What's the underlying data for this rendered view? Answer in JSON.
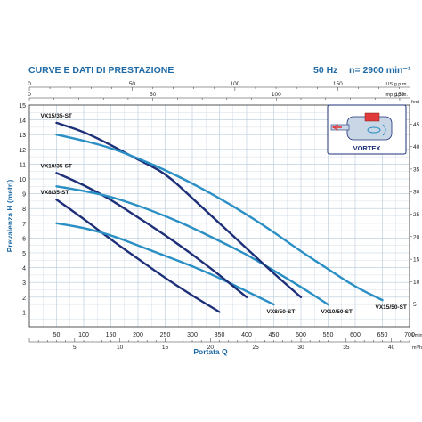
{
  "header": {
    "title": "CURVE E DATI DI PRESTAZIONE",
    "freq": "50 Hz",
    "speed": "n= 2900 min⁻¹"
  },
  "inset": {
    "label": "VORTEX"
  },
  "colors": {
    "accent": "#1f6aa5",
    "curve_dark": "#1d2f78",
    "curve_light": "#2a8fc4",
    "grid": "#b5c9d8"
  },
  "chart_data": {
    "type": "line",
    "xlabel": "Portata Q",
    "ylabel": "Prevalenza H (metri)",
    "xlim": [
      0,
      700
    ],
    "ylim": [
      0,
      15
    ],
    "grid": true,
    "x_ticks": [
      50,
      100,
      150,
      200,
      250,
      300,
      350,
      400,
      450,
      500,
      550,
      600,
      650,
      700
    ],
    "y_ticks": [
      1,
      2,
      3,
      4,
      5,
      6,
      7,
      8,
      9,
      10,
      11,
      12,
      13,
      14,
      15
    ],
    "x_unit": "l/min",
    "x2_unit": "m³/h",
    "x2_ticks": [
      "5",
      "10",
      "15",
      "20",
      "25",
      "30",
      "35",
      "40"
    ],
    "usgpm_unit": "US g.p.m.",
    "usgpm_ticks": [
      "0",
      "50",
      "100",
      "150"
    ],
    "impgpm_unit": "Imp g.p.m.",
    "impgpm_ticks": [
      "0",
      "50",
      "100",
      "150"
    ],
    "feet_unit": "feet",
    "feet_ticks": [
      5,
      10,
      15,
      20,
      25,
      30,
      35,
      40,
      45
    ],
    "series": [
      {
        "name": "VX8/35-ST",
        "x": [
          50,
          100,
          150,
          200,
          250,
          300,
          350
        ],
        "y": [
          8.6,
          7.3,
          5.9,
          4.6,
          3.3,
          2.1,
          1.0
        ]
      },
      {
        "name": "VX8/50-ST",
        "x": [
          50,
          100,
          150,
          200,
          250,
          300,
          350,
          400,
          450
        ],
        "y": [
          7.0,
          6.7,
          6.2,
          5.5,
          4.8,
          4.1,
          3.3,
          2.4,
          1.5
        ]
      },
      {
        "name": "VX10/35-ST",
        "x": [
          50,
          100,
          150,
          200,
          250,
          300,
          350,
          400
        ],
        "y": [
          10.4,
          9.6,
          8.6,
          7.4,
          6.2,
          4.9,
          3.5,
          2.0
        ]
      },
      {
        "name": "VX10/50-ST",
        "x": [
          50,
          100,
          150,
          200,
          250,
          300,
          350,
          400,
          450,
          500,
          550
        ],
        "y": [
          9.5,
          9.2,
          8.8,
          8.2,
          7.5,
          6.7,
          5.8,
          4.9,
          3.8,
          2.7,
          1.5
        ]
      },
      {
        "name": "VX15/35-ST",
        "x": [
          50,
          100,
          150,
          200,
          250,
          300,
          350,
          400,
          450,
          500
        ],
        "y": [
          13.8,
          13.2,
          12.3,
          11.3,
          10.4,
          8.7,
          7.0,
          5.3,
          3.6,
          2.0
        ]
      },
      {
        "name": "VX15/50-ST",
        "x": [
          50,
          100,
          150,
          200,
          250,
          300,
          350,
          400,
          450,
          500,
          550,
          600,
          650
        ],
        "y": [
          13.0,
          12.6,
          12.1,
          11.4,
          10.6,
          9.7,
          8.7,
          7.6,
          6.4,
          5.1,
          3.9,
          2.7,
          1.8
        ]
      }
    ]
  }
}
